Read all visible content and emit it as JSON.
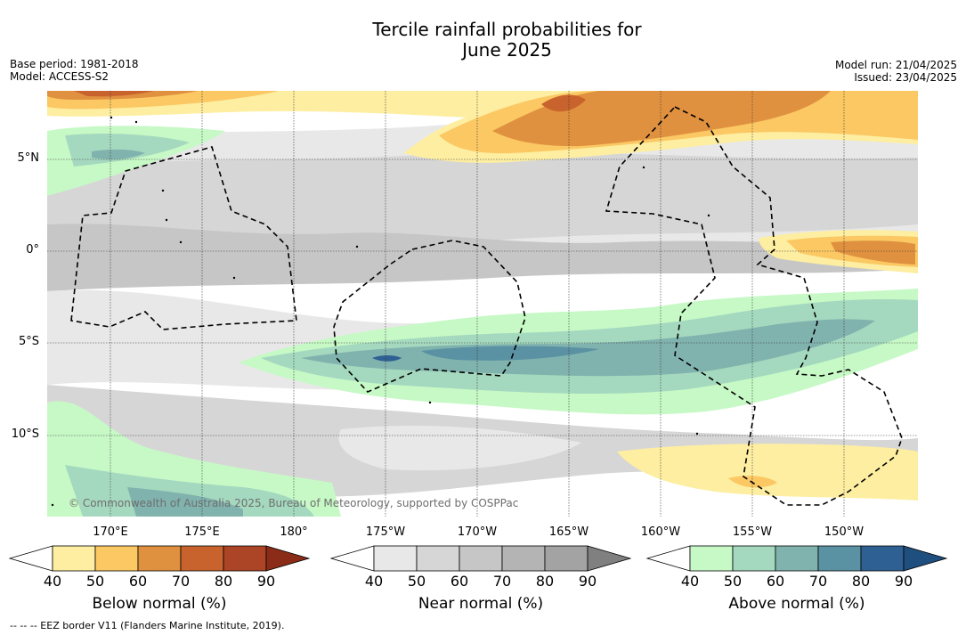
{
  "title_line1": "Tercile rainfall probabilities for",
  "title_line2": "June 2025",
  "base_period": "Base period: 1981-2018",
  "model": "Model: ACCESS-S2",
  "model_run": "Model run: 21/04/2025",
  "issued": "Issued: 23/04/2025",
  "lat_labels": [
    "5°N",
    "0°",
    "5°S",
    "10°S"
  ],
  "lon_labels": [
    "170°E",
    "175°E",
    "180°",
    "175°W",
    "170°W",
    "165°W",
    "160°W",
    "155°W",
    "150°W"
  ],
  "copyright": "© Commonwealth of Australia 2025, Bureau of Meteorology, supported by COSPPac",
  "colorbars": [
    {
      "title": "Below normal (%)",
      "ticks": [
        "40",
        "50",
        "60",
        "70",
        "80",
        "90"
      ],
      "colors": [
        "#ffffff",
        "#fdeea1",
        "#fbc864",
        "#e0913f",
        "#c9632d",
        "#ac4426",
        "#8a2c18"
      ]
    },
    {
      "title": "Near normal (%)",
      "ticks": [
        "40",
        "50",
        "60",
        "70",
        "80",
        "90"
      ],
      "colors": [
        "#ffffff",
        "#e8e8e8",
        "#d6d6d6",
        "#c6c6c6",
        "#b4b4b4",
        "#a3a3a3",
        "#808080"
      ]
    },
    {
      "title": "Above normal (%)",
      "ticks": [
        "40",
        "50",
        "60",
        "70",
        "80",
        "90"
      ],
      "colors": [
        "#ffffff",
        "#c7f9c6",
        "#a5d9bf",
        "#81b3ae",
        "#5a92a3",
        "#2f6093",
        "#1e4f7e"
      ]
    }
  ],
  "eez_note": "--  --  -- EEZ border V11 (Flanders Marine Institute, 2019)."
}
